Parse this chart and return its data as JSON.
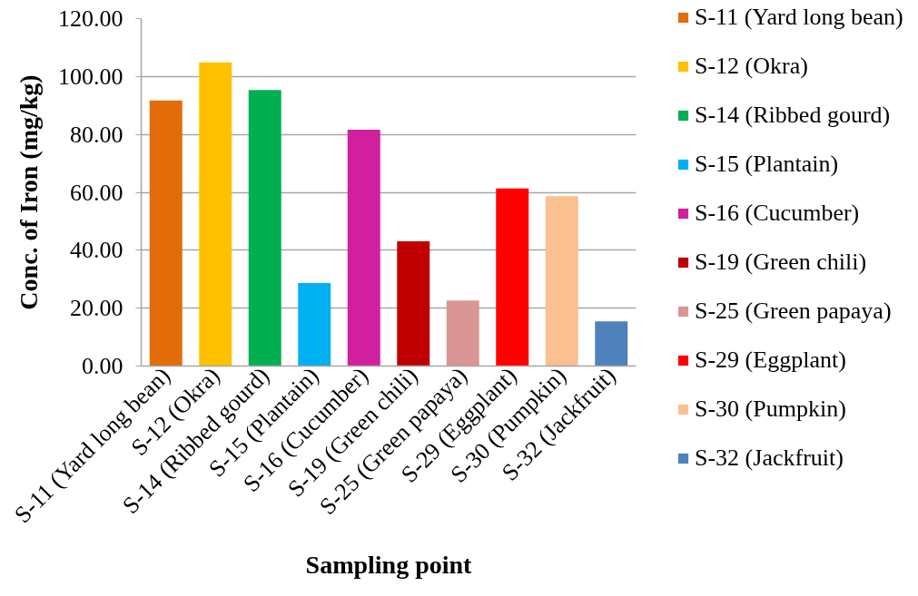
{
  "chart_data": {
    "type": "bar",
    "xlabel": "Sampling point",
    "ylabel": "Conc. of Iron (mg/kg)",
    "categories": [
      "S-11 (Yard long bean)",
      "S-12 (Okra)",
      "S-14 (Ribbed gourd)",
      "S-15 (Plantain)",
      "S-16 (Cucumber)",
      "S-19 (Green chili)",
      "S-25 (Green papaya)",
      "S-29 (Eggplant)",
      "S-30 (Pumpkin)",
      "S-32 (Jackfruit)"
    ],
    "series": [
      {
        "name": "S-11 (Yard long bean)",
        "color": "#e36c0a",
        "values": [
          91.7,
          null,
          null,
          null,
          null,
          null,
          null,
          null,
          null,
          null
        ]
      },
      {
        "name": "S-12 (Okra)",
        "color": "#ffc000",
        "values": [
          null,
          104.9,
          null,
          null,
          null,
          null,
          null,
          null,
          null,
          null
        ]
      },
      {
        "name": "S-14 (Ribbed gourd)",
        "color": "#00b050",
        "values": [
          null,
          null,
          95.3,
          null,
          null,
          null,
          null,
          null,
          null,
          null
        ]
      },
      {
        "name": "S-15 (Plantain)",
        "color": "#00b0f0",
        "values": [
          null,
          null,
          null,
          28.7,
          null,
          null,
          null,
          null,
          null,
          null
        ]
      },
      {
        "name": "S-16 (Cucumber)",
        "color": "#d11f9e",
        "values": [
          null,
          null,
          null,
          null,
          81.6,
          null,
          null,
          null,
          null,
          null
        ]
      },
      {
        "name": "S-19 (Green chili)",
        "color": "#c00000",
        "values": [
          null,
          null,
          null,
          null,
          null,
          43.1,
          null,
          null,
          null,
          null
        ]
      },
      {
        "name": "S-25 (Green papaya)",
        "color": "#da9694",
        "values": [
          null,
          null,
          null,
          null,
          null,
          null,
          22.6,
          null,
          null,
          null
        ]
      },
      {
        "name": "S-29 (Eggplant)",
        "color": "#ff0000",
        "values": [
          null,
          null,
          null,
          null,
          null,
          null,
          null,
          61.3,
          null,
          null
        ]
      },
      {
        "name": "S-30 (Pumpkin)",
        "color": "#fac090",
        "values": [
          null,
          null,
          null,
          null,
          null,
          null,
          null,
          null,
          58.7,
          null
        ]
      },
      {
        "name": "S-32 (Jackfruit)",
        "color": "#4f81bd",
        "values": [
          null,
          null,
          null,
          null,
          null,
          null,
          null,
          null,
          null,
          15.4
        ]
      }
    ],
    "ylim": [
      0,
      120
    ],
    "yticks": [
      {
        "value": 0,
        "label": "0.00"
      },
      {
        "value": 20,
        "label": "20.00"
      },
      {
        "value": 40,
        "label": "40.00"
      },
      {
        "value": 60,
        "label": "60.00"
      },
      {
        "value": 80,
        "label": "80.00"
      },
      {
        "value": 100,
        "label": "100.00"
      },
      {
        "value": 120,
        "label": "120.00"
      }
    ],
    "grid": "y",
    "legend": "right"
  }
}
